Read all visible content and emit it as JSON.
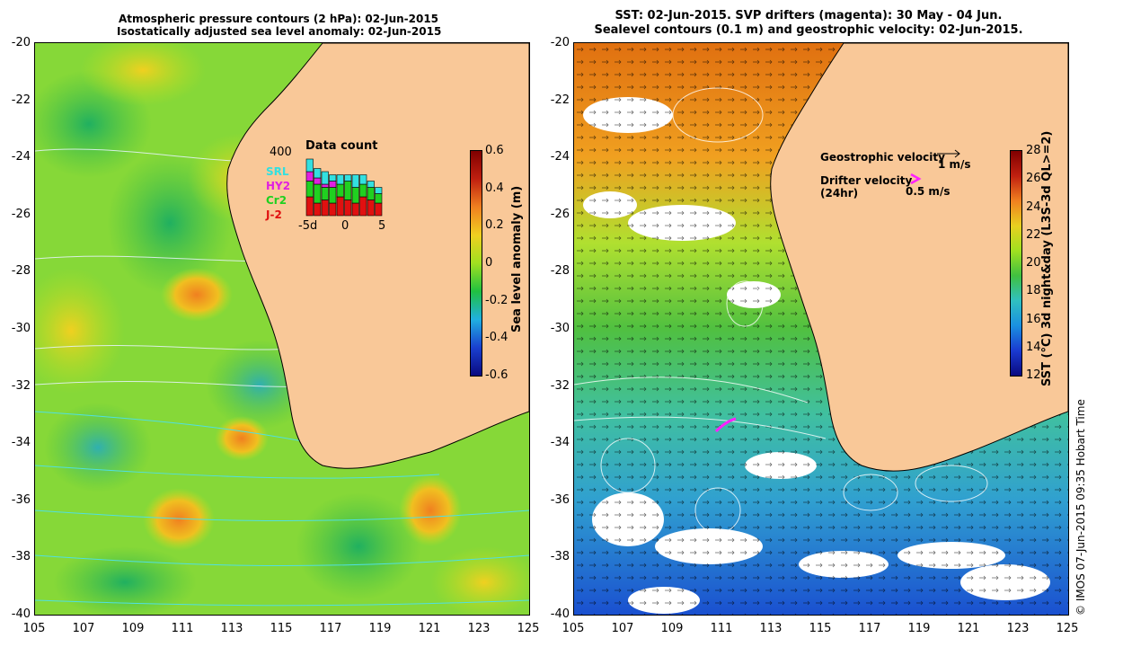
{
  "left_panel": {
    "title_line1": "Atmospheric pressure contours (2 hPa): 02-Jun-2015",
    "title_line2": "Isostatically adjusted sea level anomaly: 02-Jun-2015",
    "colorbar_title": "Sea level anomaly (m)",
    "colorbar_ticks": [
      "0.6",
      "0.4",
      "0.2",
      "0",
      "-0.2",
      "-0.4",
      "-0.6"
    ],
    "inset": {
      "count_label": "400",
      "title": "Data count",
      "missions": [
        {
          "name": "SRL",
          "color": "#33e0e0"
        },
        {
          "name": "HY2",
          "color": "#e020e0"
        },
        {
          "name": "Cr2",
          "color": "#20d020"
        },
        {
          "name": "J-2",
          "color": "#e01010"
        }
      ],
      "x_ticks": [
        "-5d",
        "0",
        "5"
      ],
      "bars": [
        {
          "j2": 0.3,
          "cr2": 0.25,
          "hy2": 0.15,
          "srl": 0.2
        },
        {
          "j2": 0.2,
          "cr2": 0.3,
          "hy2": 0.1,
          "srl": 0.15
        },
        {
          "j2": 0.25,
          "cr2": 0.2,
          "hy2": 0.05,
          "srl": 0.2
        },
        {
          "j2": 0.2,
          "cr2": 0.25,
          "hy2": 0.1,
          "srl": 0.1
        },
        {
          "j2": 0.3,
          "cr2": 0.2,
          "hy2": 0.0,
          "srl": 0.15
        },
        {
          "j2": 0.25,
          "cr2": 0.3,
          "hy2": 0.0,
          "srl": 0.1
        },
        {
          "j2": 0.2,
          "cr2": 0.25,
          "hy2": 0.0,
          "srl": 0.2
        },
        {
          "j2": 0.3,
          "cr2": 0.2,
          "hy2": 0.0,
          "srl": 0.15
        },
        {
          "j2": 0.25,
          "cr2": 0.2,
          "hy2": 0.0,
          "srl": 0.1
        },
        {
          "j2": 0.2,
          "cr2": 0.15,
          "hy2": 0.0,
          "srl": 0.1
        }
      ]
    }
  },
  "right_panel": {
    "title_line1": "SST: 02-Jun-2015. SVP drifters (magenta): 30 May - 04 Jun.",
    "title_line2": "Sealevel contours (0.1 m) and geostrophic velocity: 02-Jun-2015.",
    "colorbar_title": "SST (°C) 3d night&day (L3S-3d QL>=2)",
    "colorbar_ticks": [
      "28",
      "26",
      "24",
      "22",
      "20",
      "18",
      "16",
      "14",
      "12"
    ],
    "geostrophic_label": "Geostrophic velocity",
    "geostrophic_scale": "1 m/s",
    "drifter_label_line1": "Drifter velocity",
    "drifter_label_line2": "(24hr)",
    "drifter_scale": "0.5 m/s"
  },
  "axes": {
    "lat_ticks": [
      "-20",
      "-22",
      "-24",
      "-26",
      "-28",
      "-30",
      "-32",
      "-34",
      "-36",
      "-38",
      "-40"
    ],
    "lon_ticks": [
      "105",
      "107",
      "109",
      "111",
      "113",
      "115",
      "117",
      "119",
      "121",
      "123",
      "125"
    ]
  },
  "credit": "© IMOS 07-Jun-2015 09:35 Hobart Time",
  "colors": {
    "land": "#f9c898",
    "sla_colormap": [
      "#0a0a80",
      "#1a40d0",
      "#20b0e0",
      "#20c040",
      "#a0e020",
      "#f0d020",
      "#f08020",
      "#c02010",
      "#800000"
    ],
    "sst_colormap": [
      "#0a0a80",
      "#1a3ad0",
      "#1a90e0",
      "#30c0c0",
      "#40c040",
      "#a0e020",
      "#e8d020",
      "#f08020",
      "#c02010"
    ]
  }
}
